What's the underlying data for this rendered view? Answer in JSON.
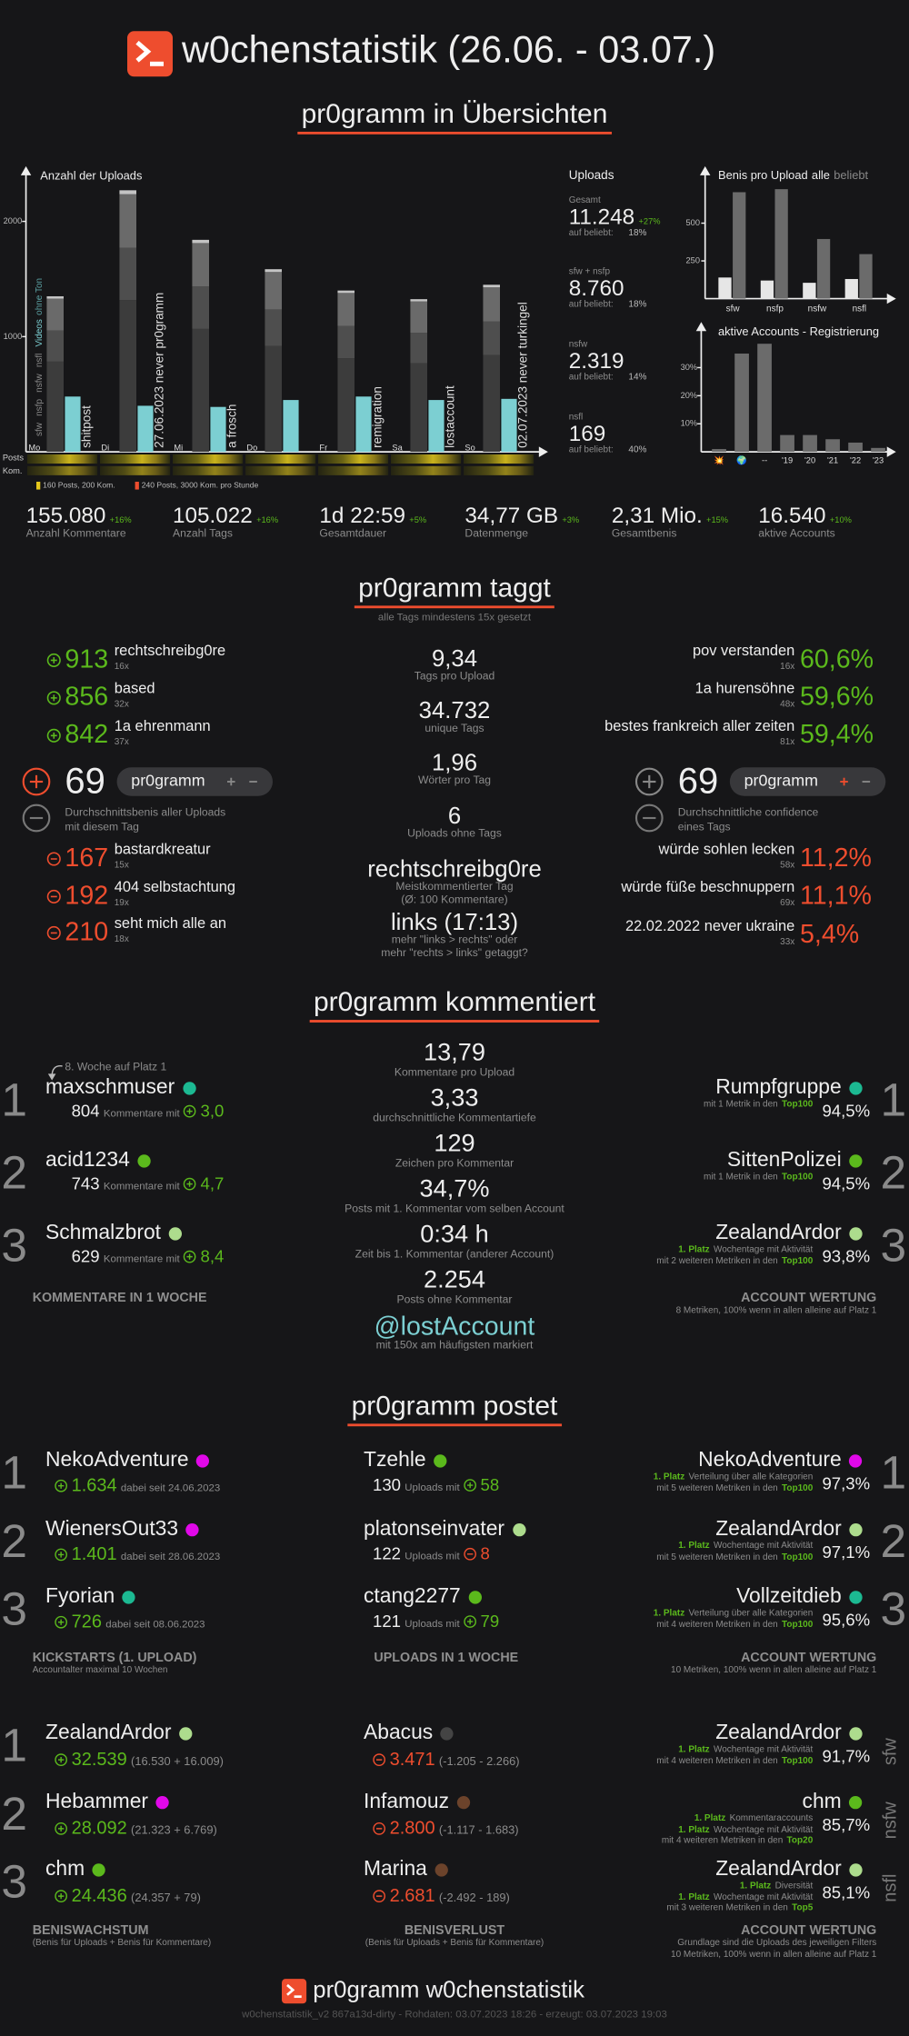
{
  "header": {
    "title": "w0chenstatistik (26.06. - 03.07.)"
  },
  "ranks": [
    "1",
    "2",
    "3"
  ],
  "overview": {
    "title": "pr0gramm in Übersichten",
    "uploads_chart": {
      "type": "bar",
      "title": "Anzahl der Uploads",
      "categories": [
        "Mo",
        "Di",
        "Mi",
        "Do",
        "Fr",
        "Sa",
        "So"
      ],
      "series": [
        {
          "name": "sfw",
          "color": "#3c3c3c",
          "values": [
            783,
            1317,
            1067,
            919,
            812,
            769,
            841
          ]
        },
        {
          "name": "nsfp",
          "color": "#4e4e4e",
          "values": [
            270,
            454,
            368,
            317,
            280,
            265,
            290
          ]
        },
        {
          "name": "nsfw",
          "color": "#6a6a6a",
          "values": [
            277,
            465,
            377,
            325,
            287,
            272,
            297
          ]
        },
        {
          "name": "nsfl",
          "color": "#c4c4c4",
          "values": [
            20,
            34,
            28,
            24,
            21,
            19,
            22
          ]
        }
      ],
      "videos": {
        "name": "Videos",
        "color": "#7ccfd2",
        "values": [
          480,
          400,
          390,
          450,
          480,
          450,
          460
        ]
      },
      "video_note": "ohne Ton",
      "ylim": [
        0,
        2400
      ],
      "yticks": [
        1000,
        2000
      ],
      "annotations": [
        "shitpost",
        "27.06.2023 never pr0gramm",
        "a frosch",
        null,
        "remigration",
        "lostaccount",
        "02.07.2023 never turkingel"
      ],
      "strip_labels": [
        "Posts",
        "Kom."
      ],
      "strip_legend": [
        "160 Posts, 200 Kom.",
        "240 Posts, 3000 Kom. pro Stunde"
      ]
    },
    "uploads_summary": {
      "title": "Uploads",
      "items": [
        {
          "label": "Gesamt",
          "value": "11.248",
          "change": "+27%",
          "popular_label": "auf beliebt:",
          "popular": "18%"
        },
        {
          "label": "sfw + nsfp",
          "value": "8.760",
          "popular_label": "auf beliebt:",
          "popular": "18%"
        },
        {
          "label": "nsfw",
          "value": "2.319",
          "popular_label": "auf beliebt:",
          "popular": "14%"
        },
        {
          "label": "nsfl",
          "value": "169",
          "popular_label": "auf beliebt:",
          "popular": "40%"
        }
      ]
    },
    "benis_chart": {
      "type": "bar",
      "title": "Benis pro Upload",
      "categories": [
        "sfw",
        "nsfp",
        "nsfw",
        "nsfl"
      ],
      "series": [
        {
          "name": "alle",
          "color": "#e6e6e6",
          "values": [
            140,
            120,
            105,
            130
          ]
        },
        {
          "name": "beliebt",
          "color": "#6b6b6b",
          "values": [
            705,
            725,
            395,
            295
          ]
        }
      ],
      "ylim": [
        0,
        860
      ],
      "yticks": [
        250,
        500
      ]
    },
    "accounts_chart": {
      "type": "bar",
      "title": "aktive Accounts - Registrierung",
      "categories": [
        "💥",
        "🌍",
        "--",
        "'19",
        "'20",
        "'21",
        "'22",
        "'23"
      ],
      "values": [
        1,
        35,
        38.5,
        6,
        6,
        4.5,
        3.3,
        1.4
      ],
      "color": "#6b6b6b",
      "ylim": [
        0,
        43
      ],
      "yticks": [
        {
          "value": 10,
          "label": "10%"
        },
        {
          "value": 20,
          "label": "20%"
        },
        {
          "value": 30,
          "label": "30%"
        }
      ]
    },
    "stats": [
      {
        "value": "155.080",
        "change": "+16%",
        "label": "Anzahl Kommentare"
      },
      {
        "value": "105.022",
        "change": "+16%",
        "label": "Anzahl Tags"
      },
      {
        "value": "1d 22:59",
        "change": "+5%",
        "label": "Gesamtdauer"
      },
      {
        "value": "34,77 GB",
        "change": "+3%",
        "label": "Datenmenge"
      },
      {
        "value": "2,31 Mio.",
        "change": "+15%",
        "label": "Gesamtbenis"
      },
      {
        "value": "16.540",
        "change": "+10%",
        "label": "aktive Accounts"
      }
    ]
  },
  "tags": {
    "title": "pr0gramm taggt",
    "subtitle": "alle Tags mindestens 15x gesetzt",
    "top_benis": [
      {
        "value": "913",
        "tag": "rechtschreibg0re",
        "count": "16x"
      },
      {
        "value": "856",
        "tag": "based",
        "count": "32x"
      },
      {
        "value": "842",
        "tag": "1a ehrenmann",
        "count": "37x"
      }
    ],
    "flop_benis": [
      {
        "value": "167",
        "tag": "bastardkreatur",
        "count": "15x"
      },
      {
        "value": "192",
        "tag": "404 selbstachtung",
        "count": "19x"
      },
      {
        "value": "210",
        "tag": "seht mich alle an",
        "count": "18x"
      }
    ],
    "benis_widget": {
      "value": "69",
      "tag": "pr0gramm",
      "description": [
        "Durchschnittsbenis aller Uploads",
        "mit diesem Tag"
      ]
    },
    "confidence_widget": {
      "value": "69",
      "tag": "pr0gramm",
      "description": [
        "Durchschnittliche confidence",
        "eines Tags"
      ]
    },
    "top_confidence": [
      {
        "tag": "pov verstanden",
        "count": "16x",
        "value": "60,6%"
      },
      {
        "tag": "1a hurensöhne",
        "count": "48x",
        "value": "59,6%"
      },
      {
        "tag": "bestes frankreich aller zeiten",
        "count": "81x",
        "value": "59,4%"
      }
    ],
    "flop_confidence": [
      {
        "tag": "würde sohlen lecken",
        "count": "58x",
        "value": "11,2%"
      },
      {
        "tag": "würde füße beschnuppern",
        "count": "69x",
        "value": "11,1%"
      },
      {
        "tag": "22.02.2022 never ukraine",
        "count": "33x",
        "value": "5,4%"
      }
    ],
    "stats": [
      {
        "value": "9,34",
        "label": "Tags pro Upload"
      },
      {
        "value": "34.732",
        "label": "unique Tags"
      },
      {
        "value": "1,96",
        "label": "Wörter pro Tag"
      },
      {
        "value": "6",
        "label": "Uploads ohne Tags"
      },
      {
        "value": "rechtschreibg0re",
        "label": "Meistkommentierter Tag",
        "note": "(Ø: 100 Kommentare)"
      },
      {
        "value": "links (17:13)",
        "label": "mehr \"links > rechts\" oder",
        "note": "mehr \"rechts > links\" getaggt?"
      }
    ]
  },
  "comments": {
    "title": "pr0gramm kommentiert",
    "top_commenters": {
      "title": "KOMMENTARE IN 1 WOCHE",
      "streak": "8. Woche auf Platz 1",
      "users": [
        {
          "name": "maxschmuser",
          "dot": "#1cb992",
          "count": "804",
          "unit": "Kommentare mit",
          "benis": "3,0"
        },
        {
          "name": "acid1234",
          "dot": "#5bb91c",
          "count": "743",
          "unit": "Kommentare mit",
          "benis": "4,7"
        },
        {
          "name": "Schmalzbrot",
          "dot": "#addc8d",
          "count": "629",
          "unit": "Kommentare mit",
          "benis": "8,4"
        }
      ]
    },
    "stats": [
      {
        "value": "13,79",
        "label": "Kommentare pro Upload"
      },
      {
        "value": "3,33",
        "label": "durchschnittliche Kommentartiefe"
      },
      {
        "value": "129",
        "label": "Zeichen pro Kommentar"
      },
      {
        "value": "34,7%",
        "label": "Posts mit 1. Kommentar vom selben Account"
      },
      {
        "value": "0:34 h",
        "label": "Zeit bis 1. Kommentar (anderer Account)"
      },
      {
        "value": "2.254",
        "label": "Posts ohne Kommentar"
      }
    ],
    "mention": {
      "value": "@lostAccount",
      "label": "mit 150x am häufigsten markiert"
    },
    "ratings": {
      "title": "ACCOUNT WERTUNG",
      "note": [
        "8 Metriken, 100% wenn in allen alleine auf Platz 1"
      ],
      "users": [
        {
          "name": "Rumpfgruppe",
          "dot": "#1cb992",
          "details": [
            {
              "text": "mit 1 Metrik in den",
              "top": "Top100"
            }
          ],
          "value": "94,5%"
        },
        {
          "name": "SittenPolizei",
          "dot": "#5bb91c",
          "details": [
            {
              "text": "mit 1 Metrik in den",
              "top": "Top100"
            }
          ],
          "value": "94,5%"
        },
        {
          "name": "ZealandArdor",
          "dot": "#addc8d",
          "details": [
            {
              "place": "1. Platz",
              "text": "Wochentage mit Aktivität"
            },
            {
              "text": "mit 2 weiteren Metriken in den",
              "top": "Top100"
            }
          ],
          "value": "93,8%"
        }
      ]
    }
  },
  "posts": {
    "title": "pr0gramm postet",
    "kickstarts": {
      "title": "KICKSTARTS (1. UPLOAD)",
      "note": "Accountalter maximal 10 Wochen",
      "users": [
        {
          "name": "NekoAdventure",
          "dot": "#e108e9",
          "value": "1.634",
          "since": "dabei seit 24.06.2023"
        },
        {
          "name": "WienersOut33",
          "dot": "#e108e9",
          "value": "1.401",
          "since": "dabei seit 28.06.2023"
        },
        {
          "name": "Fyorian",
          "dot": "#1cb992",
          "value": "726",
          "since": "dabei seit 08.06.2023"
        }
      ]
    },
    "uploads": {
      "title": "UPLOADS IN 1 WOCHE",
      "users": [
        {
          "name": "Tzehle",
          "dot": "#5bb91c",
          "count": "130",
          "unit": "Uploads mit",
          "benis": "58",
          "positive": true
        },
        {
          "name": "platonseinvater",
          "dot": "#addc8d",
          "count": "122",
          "unit": "Uploads mit",
          "benis": "8",
          "positive": false
        },
        {
          "name": "ctang2277",
          "dot": "#5bb91c",
          "count": "121",
          "unit": "Uploads mit",
          "benis": "79",
          "positive": true
        }
      ]
    },
    "ratings": {
      "title": "ACCOUNT WERTUNG",
      "note": [
        "10 Metriken, 100% wenn in allen alleine auf Platz 1"
      ],
      "users": [
        {
          "name": "NekoAdventure",
          "dot": "#e108e9",
          "details": [
            {
              "place": "1. Platz",
              "text": "Verteilung über alle Kategorien"
            },
            {
              "text": "mit 5 weiteren Metriken in den",
              "top": "Top100"
            }
          ],
          "value": "97,3%"
        },
        {
          "name": "ZealandArdor",
          "dot": "#addc8d",
          "details": [
            {
              "place": "1. Platz",
              "text": "Wochentage mit Aktivität"
            },
            {
              "text": "mit 5 weiteren Metriken in den",
              "top": "Top100"
            }
          ],
          "value": "97,1%"
        },
        {
          "name": "Vollzeitdieb",
          "dot": "#1cb992",
          "details": [
            {
              "place": "1. Platz",
              "text": "Verteilung über alle Kategorien"
            },
            {
              "text": "mit 4 weiteren Metriken in den",
              "top": "Top100"
            }
          ],
          "value": "95,6%"
        }
      ]
    },
    "growth": {
      "title": "BENISWACHSTUM",
      "note": "(Benis für Uploads + Benis für Kommentare)",
      "positive": true,
      "users": [
        {
          "name": "ZealandArdor",
          "dot": "#addc8d",
          "value": "32.539",
          "detail": "(16.530 + 16.009)"
        },
        {
          "name": "Hebammer",
          "dot": "#e108e9",
          "value": "28.092",
          "detail": "(21.323 + 6.769)"
        },
        {
          "name": "chm",
          "dot": "#5bb91c",
          "value": "24.436",
          "detail": "(24.357 + 79)"
        }
      ]
    },
    "loss": {
      "title": "BENISVERLUST",
      "note": "(Benis für Uploads + Benis für Kommentare)",
      "positive": false,
      "users": [
        {
          "name": "Abacus",
          "dot": "#444444",
          "value": "3.471",
          "detail": "(-1.205 - 2.266)"
        },
        {
          "name": "Infamouz",
          "dot": "#6c432b",
          "value": "2.800",
          "detail": "(-1.117 - 1.683)"
        },
        {
          "name": "Marina",
          "dot": "#6c432b",
          "value": "2.681",
          "detail": "(-2.492 - 189)"
        }
      ]
    },
    "filter_ratings": {
      "title": "ACCOUNT WERTUNG",
      "note": [
        "Grundlage sind die Uploads des jeweiligen Filters",
        "10 Metriken, 100% wenn in allen alleine auf Platz 1"
      ],
      "users": [
        {
          "name": "ZealandArdor",
          "dot": "#addc8d",
          "filter": "sfw",
          "details": [
            {
              "place": "1. Platz",
              "text": "Wochentage mit Aktivität"
            },
            {
              "text": "mit 4 weiteren Metriken in den",
              "top": "Top100"
            }
          ],
          "value": "91,7%"
        },
        {
          "name": "chm",
          "dot": "#5bb91c",
          "filter": "nsfw",
          "details": [
            {
              "place": "1. Platz",
              "text": "Kommentaraccounts"
            },
            {
              "place": "1. Platz",
              "text": "Wochentage mit Aktivität"
            },
            {
              "text": "mit 4 weiteren Metriken in den",
              "top": "Top20"
            }
          ],
          "value": "85,7%"
        },
        {
          "name": "ZealandArdor",
          "dot": "#addc8d",
          "filter": "nsfl",
          "details": [
            {
              "place": "1. Platz",
              "text": "Diversität"
            },
            {
              "place": "1. Platz",
              "text": "Wochentage mit Aktivität"
            },
            {
              "text": "mit 3 weiteren Metriken in den",
              "top": "Top5"
            }
          ],
          "value": "85,1%"
        }
      ]
    }
  },
  "footer": {
    "title": "pr0gramm w0chenstatistik",
    "meta": "w0chenstatistik_v2 867a13d-dirty - Rohdaten: 03.07.2023 18:26 - erzeugt: 03.07.2023 19:03"
  }
}
